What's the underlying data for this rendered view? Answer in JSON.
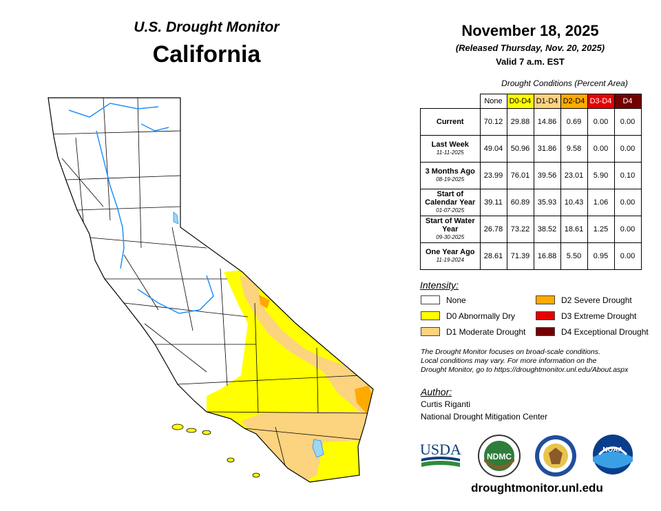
{
  "header": {
    "title": "U.S. Drought Monitor",
    "state": "California",
    "date": "November 18, 2025",
    "released": "(Released Thursday, Nov. 20, 2025)",
    "valid": "Valid 7 a.m. EST"
  },
  "table": {
    "caption": "Drought Conditions (Percent Area)",
    "columns": [
      {
        "label": "None",
        "color": "#ffffff",
        "text": "#000000"
      },
      {
        "label": "D0-D4",
        "color": "#ffff00",
        "text": "#000000"
      },
      {
        "label": "D1-D4",
        "color": "#fcd37f",
        "text": "#000000"
      },
      {
        "label": "D2-D4",
        "color": "#ffaa00",
        "text": "#000000"
      },
      {
        "label": "D3-D4",
        "color": "#e60000",
        "text": "#ffffff"
      },
      {
        "label": "D4",
        "color": "#730000",
        "text": "#ffffff"
      }
    ],
    "rows": [
      {
        "label": "Current",
        "date": "",
        "values": [
          "70.12",
          "29.88",
          "14.86",
          "0.69",
          "0.00",
          "0.00"
        ]
      },
      {
        "label": "Last Week",
        "date": "11-11-2025",
        "values": [
          "49.04",
          "50.96",
          "31.86",
          "9.58",
          "0.00",
          "0.00"
        ]
      },
      {
        "label": "3 Months Ago",
        "date": "08-19-2025",
        "values": [
          "23.99",
          "76.01",
          "39.56",
          "23.01",
          "5.90",
          "0.10"
        ]
      },
      {
        "label": "Start of Calendar Year",
        "date": "01-07-2025",
        "values": [
          "39.11",
          "60.89",
          "35.93",
          "10.43",
          "1.06",
          "0.00"
        ]
      },
      {
        "label": "Start of Water Year",
        "date": "09-30-2025",
        "values": [
          "26.78",
          "73.22",
          "38.52",
          "18.61",
          "1.25",
          "0.00"
        ]
      },
      {
        "label": "One Year Ago",
        "date": "11-19-2024",
        "values": [
          "28.61",
          "71.39",
          "16.88",
          "5.50",
          "0.95",
          "0.00"
        ]
      }
    ]
  },
  "legend": {
    "title": "Intensity:",
    "items": [
      {
        "label": "None",
        "color": "#ffffff"
      },
      {
        "label": "D0 Abnormally Dry",
        "color": "#ffff00"
      },
      {
        "label": "D1 Moderate Drought",
        "color": "#fcd37f"
      },
      {
        "label": "D2 Severe Drought",
        "color": "#ffaa00"
      },
      {
        "label": "D3 Extreme Drought",
        "color": "#e60000"
      },
      {
        "label": "D4 Exceptional Drought",
        "color": "#730000"
      }
    ]
  },
  "note": [
    "The Drought Monitor focuses on broad-scale conditions.",
    "Local conditions may vary. For more information on the",
    "Drought Monitor, go to https://droughtmonitor.unl.edu/About.aspx"
  ],
  "author": {
    "heading": "Author:",
    "name": "Curtis Riganti",
    "org": "National Drought Mitigation Center"
  },
  "logos": {
    "usda": "USDA",
    "ndmc": "NDMC",
    "noaa": "NOAA"
  },
  "footer": {
    "site": "droughtmonitor.unl.edu"
  },
  "map": {
    "water_color": "#9fd5f0",
    "river_color": "#1e90ff",
    "boundary_color": "#000000"
  }
}
